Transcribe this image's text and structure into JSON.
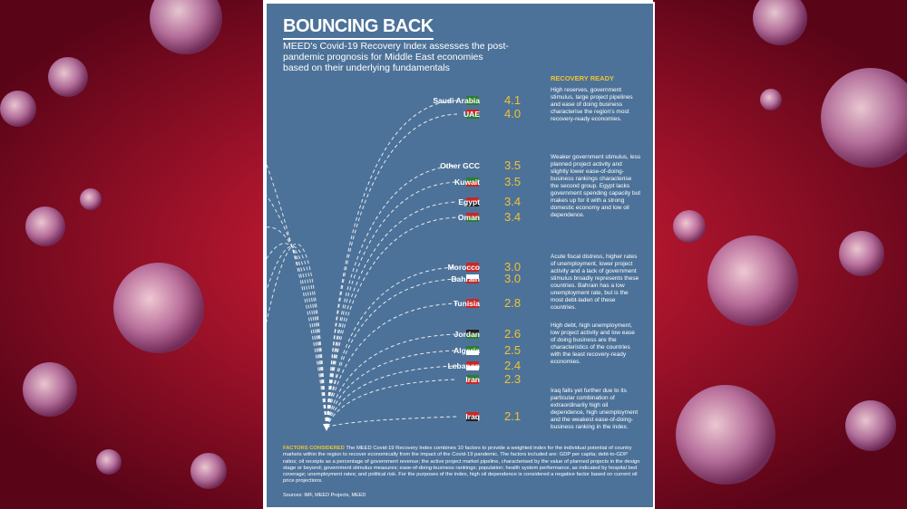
{
  "header": {
    "title": "BOUNCING BACK",
    "intro": "MEED's Covid-19 Recovery Index assesses the post-pandemic prognosis for Middle East economies based on their underlying fundamentals"
  },
  "items": [
    {
      "country": "Saudi Arabia",
      "score": "4.1"
    },
    {
      "country": "UAE",
      "score": "4.0"
    },
    {
      "country": "Other GCC",
      "score": "3.5"
    },
    {
      "country": "Kuwait",
      "score": "3.5"
    },
    {
      "country": "Egypt",
      "score": "3.4"
    },
    {
      "country": "Oman",
      "score": "3.4"
    },
    {
      "country": "Morocco",
      "score": "3.0"
    },
    {
      "country": "Bahrain",
      "score": "3.0"
    },
    {
      "country": "Tunisia",
      "score": "2.8"
    },
    {
      "country": "Jordan",
      "score": "2.6"
    },
    {
      "country": "Algeria",
      "score": "2.5"
    },
    {
      "country": "Lebanon",
      "score": "2.4"
    },
    {
      "country": "Iran",
      "score": "2.3"
    },
    {
      "country": "Iraq",
      "score": "2.1"
    }
  ],
  "groups": [
    {
      "label": "RECOVERY READY",
      "text": "High reserves, government stimulus, large project pipelines and ease of doing business characterise the region's most recovery-ready economies."
    },
    {
      "text": "Weaker government stimulus, less planned project activity and slightly lower ease-of-doing-business rankings characterise the second group. Egypt lacks government spending capacity but makes up for it with a strong domestic economy and low oil dependence."
    },
    {
      "text": "Acute fiscal distress, higher rates of unemployment, lower project activity and a lack of government stimulus broadly represents these countries. Bahrain has a low unemployment rate, but is the most debt-laden of these countries."
    },
    {
      "text": "High debt, high unemployment, low project activity and low ease of doing business are the characteristics of the countries with the least recovery-ready economies."
    },
    {
      "text": "Iraq falls yet further due to its particular combination of extraordinarily high oil dependence, high unemployment and the weakest ease-of-doing-business ranking in the index."
    }
  ],
  "factors": {
    "heading": "FACTORS CONSIDERED",
    "text": "The MEED Covid-19 Recovery Index combines 10 factors to provide a weighted index for the individual potential of country markets within the region to recover economically from the impact of the Covid-19 pandemic. The factors included are: GDP per capita; debt-to-GDP ratios; oil receipts as a percentage of government revenue; the active project market pipeline, characterised by the value of planned projects in the design stage or beyond; government stimulus measures; ease-of-doing-business rankings; population; health system performance, as indicated by hospital bed coverage; unemployment rates; and political risk. For the purposes of the index, high oil dependence is considered a negative factor based on current oil price projections."
  },
  "sources": "Sources: IMF, MEED Projects, MEED"
}
